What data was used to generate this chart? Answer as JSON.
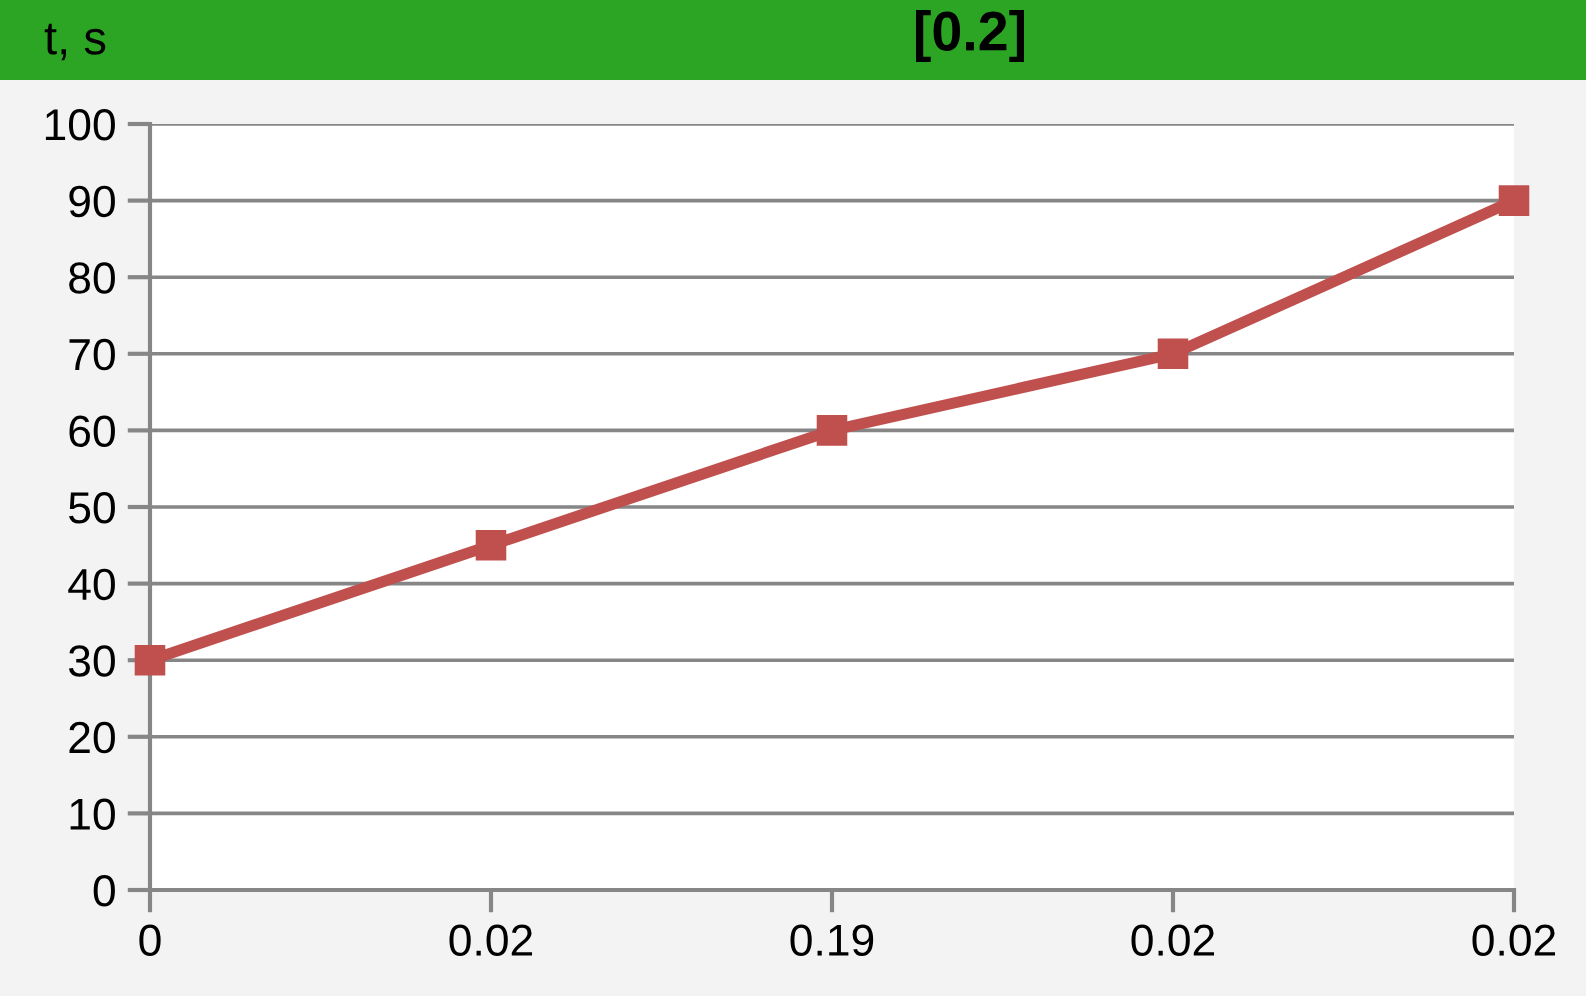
{
  "chart_data": {
    "type": "line",
    "title": "[0.2]",
    "ylabel": "t, s",
    "categories": [
      "0",
      "0.02",
      "0.19",
      "0.02",
      "0.02"
    ],
    "series": [
      {
        "color": "#c0504d",
        "values": [
          30,
          45,
          60,
          70,
          90
        ]
      }
    ],
    "ylim": [
      0,
      100
    ],
    "yticks": [
      0,
      10,
      20,
      30,
      40,
      50,
      60,
      70,
      80,
      90,
      100
    ],
    "grid": "y",
    "marker": "square",
    "line_style": "solid"
  }
}
